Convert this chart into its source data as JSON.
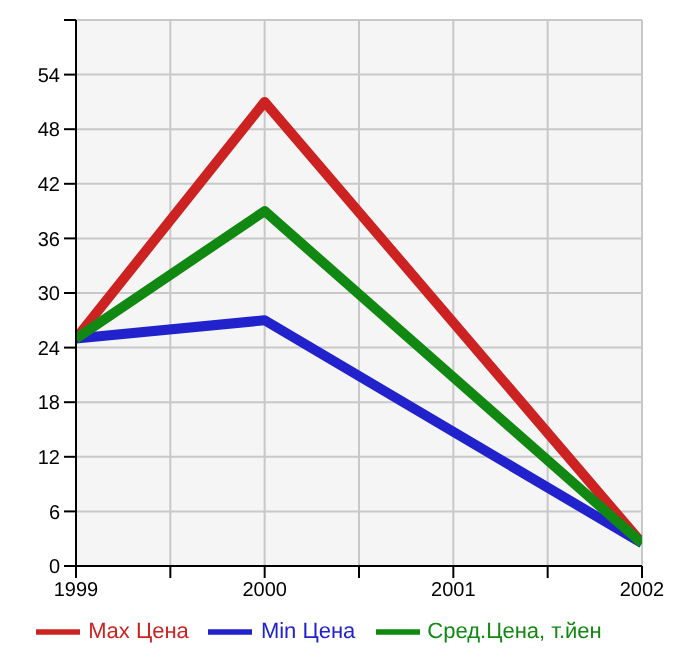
{
  "chart_data": {
    "type": "line",
    "x": [
      1999,
      2000,
      2002
    ],
    "series": [
      {
        "name": "Max Цена",
        "color": "#cc2222",
        "values": [
          25,
          51,
          2.5
        ]
      },
      {
        "name": "Min Цена",
        "color": "#2222cc",
        "values": [
          25,
          27,
          2.5
        ]
      },
      {
        "name": "Сред.Цена, т.йен",
        "color": "#118811",
        "values": [
          25,
          39,
          2.5
        ]
      }
    ],
    "xlim": [
      1999,
      2002
    ],
    "xticks": [
      1999,
      {
        "value": 1999.5,
        "label": null
      },
      2000,
      {
        "value": 2000.5,
        "label": null
      },
      2001,
      {
        "value": 2001.5,
        "label": null
      },
      2002
    ],
    "ylim": [
      0,
      60
    ],
    "yticks": [
      0,
      6,
      12,
      18,
      24,
      30,
      36,
      42,
      48,
      54,
      {
        "value": 60,
        "label": null
      }
    ],
    "grid": true,
    "legend": "bottom",
    "marker": "none",
    "line_style": "solid"
  }
}
